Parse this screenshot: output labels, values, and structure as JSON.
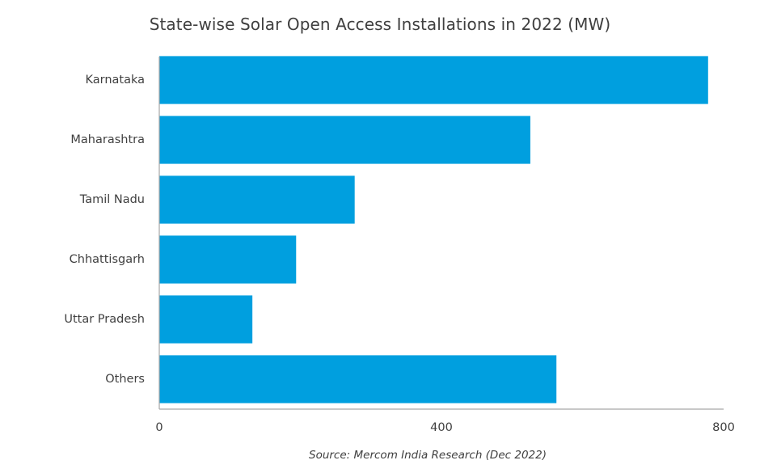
{
  "chart_data": {
    "type": "bar",
    "orientation": "horizontal",
    "title": "State-wise Solar Open Access Installations in 2022 (MW)",
    "categories": [
      "Karnataka",
      "Maharashtra",
      "Tamil Nadu",
      "Chhattisgarh",
      "Uttar Pradesh",
      "Others"
    ],
    "values": [
      778,
      526,
      277,
      194,
      132,
      563
    ],
    "xlim": [
      0,
      800
    ],
    "xticks": [
      0,
      400,
      800
    ],
    "xlabel": "",
    "ylabel": "",
    "grid": false,
    "legend": "none",
    "bar_color": "#009FDF",
    "axis_color": "#A6A6A6",
    "source": "Source: Mercom India Research (Dec 2022)"
  }
}
